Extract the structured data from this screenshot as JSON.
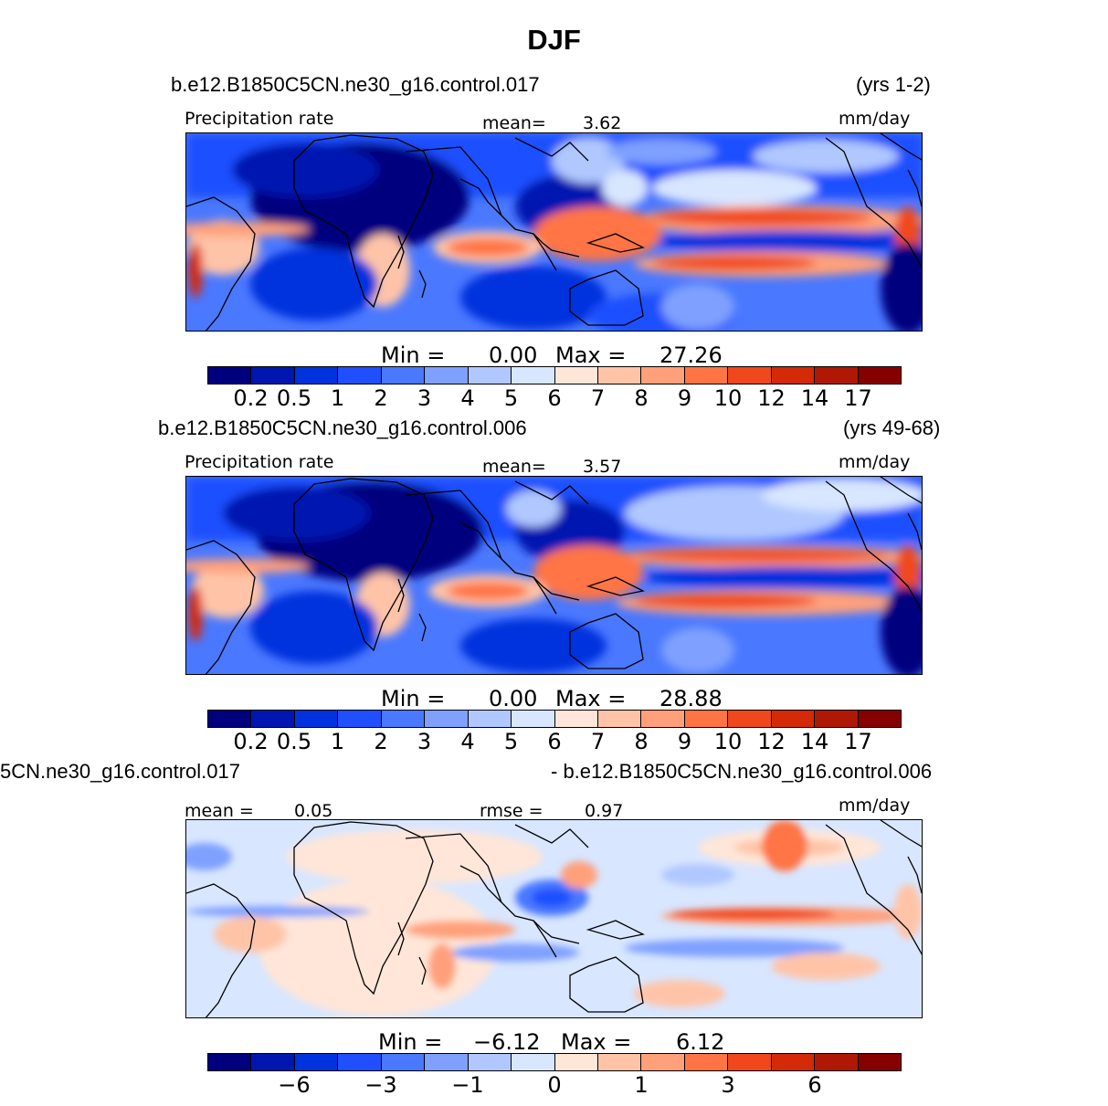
{
  "figure": {
    "title": "DJF"
  },
  "panels": [
    {
      "case": "b.e12.B1850C5CN.ne30_g16.control.017",
      "years": "(yrs 1-2)",
      "left_label": "Precipitation  rate",
      "stat1_label": "mean=",
      "stat1_value": "3.62",
      "units": "mm/day",
      "min_label": "Min  =",
      "min_value": "0.00",
      "max_label": "Max  =",
      "max_value": "27.26",
      "colorbar_ticks": [
        "0.2",
        "0.5",
        "1",
        "2",
        "3",
        "4",
        "5",
        "6",
        "7",
        "8",
        "9",
        "10",
        "12",
        "14",
        "17"
      ]
    },
    {
      "case": "b.e12.B1850C5CN.ne30_g16.control.006",
      "years": "(yrs 49-68)",
      "left_label": "Precipitation  rate",
      "stat1_label": "mean=",
      "stat1_value": "3.57",
      "units": "mm/day",
      "min_label": "Min  =",
      "min_value": "0.00",
      "max_label": "Max  =",
      "max_value": "28.88",
      "colorbar_ticks": [
        "0.2",
        "0.5",
        "1",
        "2",
        "3",
        "4",
        "5",
        "6",
        "7",
        "8",
        "9",
        "10",
        "12",
        "14",
        "17"
      ]
    },
    {
      "case_left": "5CN.ne30_g16.control.017",
      "case_right": "- b.e12.B1850C5CN.ne30_g16.control.006",
      "stat1_label": "mean  =",
      "stat1_value": "0.05",
      "stat2_label": "rmse  =",
      "stat2_value": "0.97",
      "units": "mm/day",
      "min_label": "Min  =",
      "min_value": "−6.12",
      "max_label": "Max  =",
      "max_value": "6.12",
      "colorbar_ticks": [
        "−6",
        "−3",
        "−1",
        "0",
        "1",
        "3",
        "6"
      ]
    }
  ],
  "colors": {
    "abs_scale": [
      "#00007f",
      "#0016b0",
      "#0033dd",
      "#1f4fff",
      "#4a78ff",
      "#7fa0ff",
      "#b0c8ff",
      "#d8e6ff",
      "#ffe6d8",
      "#ffc4a8",
      "#ffa07a",
      "#ff7445",
      "#f0481c",
      "#d42a08",
      "#b01806",
      "#870000"
    ],
    "diff_scale": [
      "#00007f",
      "#0016b0",
      "#0033dd",
      "#1f4fff",
      "#4a78ff",
      "#7fa0ff",
      "#b0c8ff",
      "#d8e6ff",
      "#ffe6d8",
      "#ffc4a8",
      "#ffa07a",
      "#ff7445",
      "#f0481c",
      "#d42a08",
      "#b01806",
      "#870000"
    ]
  }
}
